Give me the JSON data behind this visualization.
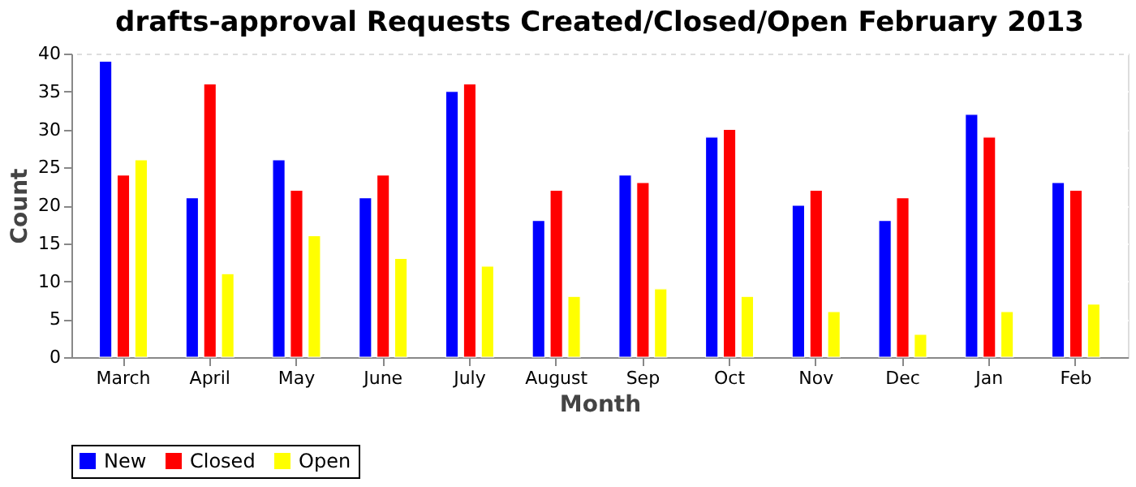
{
  "chart_data": {
    "type": "bar",
    "title": "drafts-approval Requests Created/Closed/Open February 2013",
    "xlabel": "Month",
    "ylabel": "Count",
    "categories": [
      "March",
      "April",
      "May",
      "June",
      "July",
      "August",
      "Sep",
      "Oct",
      "Nov",
      "Dec",
      "Jan",
      "Feb"
    ],
    "series": [
      {
        "name": "New",
        "color": "#0000ff",
        "values": [
          39,
          21,
          26,
          21,
          35,
          18,
          24,
          29,
          20,
          18,
          32,
          23
        ]
      },
      {
        "name": "Closed",
        "color": "#ff0000",
        "values": [
          24,
          36,
          22,
          24,
          36,
          22,
          23,
          30,
          22,
          21,
          29,
          22
        ]
      },
      {
        "name": "Open",
        "color": "#ffff00",
        "values": [
          26,
          11,
          16,
          13,
          12,
          8,
          9,
          8,
          6,
          3,
          6,
          7
        ]
      }
    ],
    "ylim": [
      0,
      40
    ],
    "yticks": [
      0,
      5,
      10,
      15,
      20,
      25,
      30,
      35,
      40
    ],
    "grid": "y",
    "legend": "bottom"
  }
}
